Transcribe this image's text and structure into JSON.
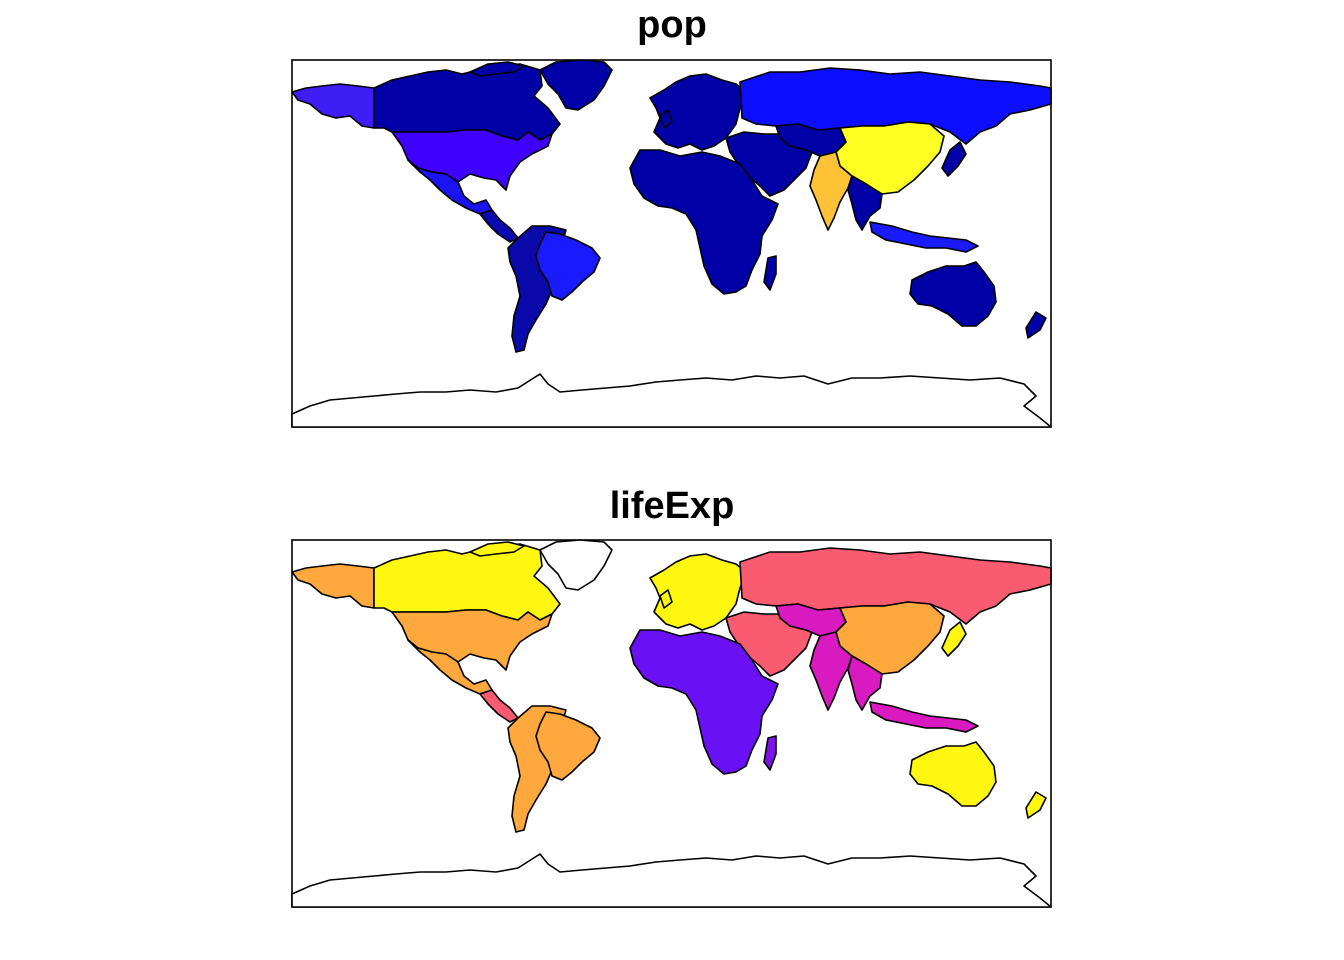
{
  "panels": [
    {
      "title": "pop",
      "colors": {
        "north_america_north": "#0000A6",
        "alaska": "#3F1EF5",
        "usa": "#4000FF",
        "mexico": "#1A14F2",
        "greenland": "#0000A6",
        "central_america": "#0A0AB0",
        "south_america": "#0A0AAA",
        "brazil": "#1A1AFF",
        "europe": "#0000A6",
        "russia": "#0D0DFF",
        "middle_east": "#0000A6",
        "africa": "#0000A6",
        "central_asia": "#0000A6",
        "china": "#FFFF24",
        "india": "#FFC236",
        "southeast_asia": "#0000A6",
        "indonesia": "#1A1AFF",
        "japan": "#0000A6",
        "australia": "#0000A6",
        "new_zealand": "#0000A6",
        "madagascar": "#0000A6",
        "antarctica": "#FFFFFF"
      }
    },
    {
      "title": "lifeExp",
      "colors": {
        "north_america_north": "#FFF70F",
        "alaska": "#FFA83D",
        "usa": "#FFA83D",
        "mexico": "#FFA83D",
        "greenland": "#FFFFFF",
        "central_america": "#F95C70",
        "south_america": "#FFA83D",
        "brazil": "#FFA83D",
        "europe": "#FFF70F",
        "russia": "#F95C70",
        "middle_east": "#F95C70",
        "africa": "#6A10F5",
        "central_asia": "#D81AC0",
        "china": "#FFA83D",
        "india": "#D81AC0",
        "southeast_asia": "#D81AC0",
        "indonesia": "#D81AC0",
        "japan": "#FFF70F",
        "australia": "#FFF70F",
        "new_zealand": "#FFF70F",
        "madagascar": "#7A14E8",
        "antarctica": "#FFFFFF"
      }
    }
  ]
}
